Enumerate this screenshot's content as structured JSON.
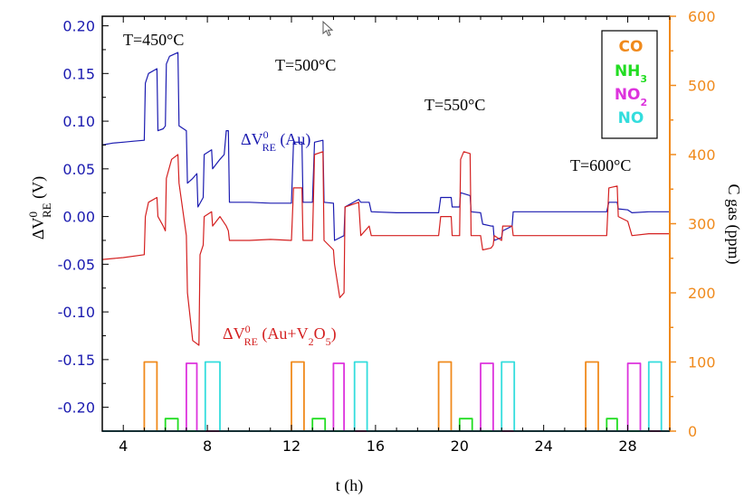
{
  "chart_data": {
    "type": "line",
    "xlabel": "t (h)",
    "ylabel": {
      "main": "ΔV",
      "sup": "0",
      "sub": "RE",
      "unit": " (V)"
    },
    "y2label": "C gas (ppm)",
    "xlim": [
      3,
      30
    ],
    "ylim": [
      -0.225,
      0.21
    ],
    "y2lim": [
      0,
      600
    ],
    "xticks": [
      4,
      8,
      12,
      16,
      20,
      24,
      28
    ],
    "yticks": [
      0.2,
      0.15,
      0.1,
      0.05,
      0.0,
      -0.05,
      -0.1,
      -0.15,
      -0.2
    ],
    "y2ticks": [
      0,
      100,
      200,
      300,
      400,
      500,
      600
    ],
    "annotations": {
      "t450": "T=450°C",
      "t500": "T=500°C",
      "t550": "T=550°C",
      "t600": "T=600°C",
      "au": {
        "main": "ΔV",
        "sup": "0",
        "sub": "RE",
        "rest": " (Au)"
      },
      "auv2o5": {
        "main": "ΔV",
        "sup": "0",
        "sub": "RE",
        "rest1": " (Au+V",
        "sub2": "2",
        "rest2": "O",
        "sub3": "5",
        "rest3": ")"
      }
    },
    "legend": {
      "position": "top-right",
      "entries": [
        {
          "text": "CO",
          "color": "#f08a1c"
        },
        {
          "text": "NH",
          "sub": "3",
          "color": "#22dd22"
        },
        {
          "text": "NO",
          "sub": "2",
          "color": "#dd33dd"
        },
        {
          "text": "NO",
          "color": "#33dddd"
        }
      ]
    },
    "series": [
      {
        "name": "ΔV0RE (Au)",
        "axis": "left",
        "color": "#1b1bb0",
        "points": [
          [
            3.0,
            0.075
          ],
          [
            3.5,
            0.077
          ],
          [
            4.0,
            0.078
          ],
          [
            4.5,
            0.079
          ],
          [
            5.0,
            0.08
          ],
          [
            5.05,
            0.14
          ],
          [
            5.2,
            0.15
          ],
          [
            5.6,
            0.155
          ],
          [
            5.65,
            0.09
          ],
          [
            5.9,
            0.092
          ],
          [
            6.0,
            0.095
          ],
          [
            6.05,
            0.16
          ],
          [
            6.2,
            0.168
          ],
          [
            6.6,
            0.172
          ],
          [
            6.65,
            0.095
          ],
          [
            7.0,
            0.09
          ],
          [
            7.05,
            0.035
          ],
          [
            7.3,
            0.04
          ],
          [
            7.5,
            0.045
          ],
          [
            7.55,
            0.01
          ],
          [
            7.8,
            0.02
          ],
          [
            7.85,
            0.065
          ],
          [
            8.2,
            0.07
          ],
          [
            8.25,
            0.05
          ],
          [
            8.6,
            0.06
          ],
          [
            8.8,
            0.065
          ],
          [
            8.9,
            0.09
          ],
          [
            9.0,
            0.09
          ],
          [
            9.05,
            0.015
          ],
          [
            10.0,
            0.015
          ],
          [
            11.0,
            0.014
          ],
          [
            12.0,
            0.014
          ],
          [
            12.1,
            0.078
          ],
          [
            12.5,
            0.078
          ],
          [
            12.55,
            0.015
          ],
          [
            13.0,
            0.015
          ],
          [
            13.1,
            0.078
          ],
          [
            13.5,
            0.08
          ],
          [
            13.55,
            0.015
          ],
          [
            14.0,
            0.014
          ],
          [
            14.05,
            -0.025
          ],
          [
            14.5,
            -0.02
          ],
          [
            14.55,
            0.01
          ],
          [
            15.2,
            0.018
          ],
          [
            15.3,
            0.015
          ],
          [
            15.7,
            0.015
          ],
          [
            15.8,
            0.005
          ],
          [
            17.0,
            0.004
          ],
          [
            18.0,
            0.004
          ],
          [
            19.0,
            0.004
          ],
          [
            19.1,
            0.02
          ],
          [
            19.6,
            0.02
          ],
          [
            19.65,
            0.01
          ],
          [
            20.0,
            0.01
          ],
          [
            20.05,
            0.025
          ],
          [
            20.5,
            0.022
          ],
          [
            20.55,
            0.005
          ],
          [
            21.0,
            0.004
          ],
          [
            21.1,
            -0.008
          ],
          [
            21.5,
            -0.01
          ],
          [
            21.6,
            -0.01
          ],
          [
            21.65,
            -0.025
          ],
          [
            22.0,
            -0.022
          ],
          [
            22.05,
            -0.015
          ],
          [
            22.5,
            -0.01
          ],
          [
            22.55,
            0.005
          ],
          [
            24.0,
            0.005
          ],
          [
            26.0,
            0.005
          ],
          [
            27.0,
            0.005
          ],
          [
            27.1,
            0.015
          ],
          [
            27.5,
            0.015
          ],
          [
            27.55,
            0.008
          ],
          [
            28.0,
            0.007
          ],
          [
            28.2,
            0.004
          ],
          [
            29.0,
            0.005
          ],
          [
            30.0,
            0.005
          ]
        ]
      },
      {
        "name": "ΔV0RE (Au+V2O5)",
        "axis": "left",
        "color": "#d42020",
        "points": [
          [
            3.0,
            -0.045
          ],
          [
            4.0,
            -0.043
          ],
          [
            5.0,
            -0.04
          ],
          [
            5.05,
            0.0
          ],
          [
            5.2,
            0.015
          ],
          [
            5.6,
            0.02
          ],
          [
            5.65,
            0.0
          ],
          [
            5.9,
            -0.01
          ],
          [
            6.0,
            -0.015
          ],
          [
            6.05,
            0.04
          ],
          [
            6.3,
            0.06
          ],
          [
            6.6,
            0.065
          ],
          [
            6.65,
            0.035
          ],
          [
            7.0,
            -0.02
          ],
          [
            7.05,
            -0.08
          ],
          [
            7.3,
            -0.13
          ],
          [
            7.6,
            -0.135
          ],
          [
            7.65,
            -0.04
          ],
          [
            7.8,
            -0.03
          ],
          [
            7.85,
            0.0
          ],
          [
            8.2,
            0.005
          ],
          [
            8.25,
            -0.01
          ],
          [
            8.6,
            0.0
          ],
          [
            8.9,
            -0.01
          ],
          [
            9.0,
            -0.015
          ],
          [
            9.05,
            -0.025
          ],
          [
            10.0,
            -0.025
          ],
          [
            11.0,
            -0.024
          ],
          [
            12.0,
            -0.025
          ],
          [
            12.1,
            0.03
          ],
          [
            12.5,
            0.03
          ],
          [
            12.55,
            -0.025
          ],
          [
            13.0,
            -0.025
          ],
          [
            13.1,
            0.065
          ],
          [
            13.5,
            0.068
          ],
          [
            13.55,
            -0.025
          ],
          [
            14.0,
            -0.035
          ],
          [
            14.05,
            -0.05
          ],
          [
            14.3,
            -0.085
          ],
          [
            14.5,
            -0.08
          ],
          [
            14.55,
            0.01
          ],
          [
            15.2,
            0.015
          ],
          [
            15.3,
            -0.02
          ],
          [
            15.7,
            -0.01
          ],
          [
            15.8,
            -0.02
          ],
          [
            17.0,
            -0.02
          ],
          [
            18.0,
            -0.02
          ],
          [
            19.0,
            -0.02
          ],
          [
            19.1,
            0.0
          ],
          [
            19.6,
            0.0
          ],
          [
            19.65,
            -0.02
          ],
          [
            20.0,
            -0.02
          ],
          [
            20.05,
            0.06
          ],
          [
            20.2,
            0.068
          ],
          [
            20.5,
            0.066
          ],
          [
            20.55,
            -0.02
          ],
          [
            21.0,
            -0.02
          ],
          [
            21.1,
            -0.035
          ],
          [
            21.5,
            -0.033
          ],
          [
            21.6,
            -0.03
          ],
          [
            21.65,
            -0.02
          ],
          [
            22.0,
            -0.025
          ],
          [
            22.05,
            -0.01
          ],
          [
            22.5,
            -0.01
          ],
          [
            22.55,
            -0.02
          ],
          [
            24.0,
            -0.02
          ],
          [
            26.0,
            -0.02
          ],
          [
            27.0,
            -0.02
          ],
          [
            27.1,
            0.03
          ],
          [
            27.5,
            0.032
          ],
          [
            27.55,
            0.0
          ],
          [
            28.0,
            -0.005
          ],
          [
            28.2,
            -0.02
          ],
          [
            29.0,
            -0.018
          ],
          [
            30.0,
            -0.018
          ]
        ]
      },
      {
        "name": "CO",
        "axis": "right",
        "color": "#f08a1c",
        "points": [
          [
            3.0,
            0
          ],
          [
            5.0,
            0
          ],
          [
            5.0,
            100
          ],
          [
            5.6,
            100
          ],
          [
            5.6,
            0
          ],
          [
            12.0,
            0
          ],
          [
            12.0,
            100
          ],
          [
            12.6,
            100
          ],
          [
            12.6,
            0
          ],
          [
            19.0,
            0
          ],
          [
            19.0,
            100
          ],
          [
            19.6,
            100
          ],
          [
            19.6,
            0
          ],
          [
            26.0,
            0
          ],
          [
            26.0,
            100
          ],
          [
            26.6,
            100
          ],
          [
            26.6,
            0
          ],
          [
            30.0,
            0
          ]
        ]
      },
      {
        "name": "NH3",
        "axis": "right",
        "color": "#22dd22",
        "points": [
          [
            3.0,
            0
          ],
          [
            6.0,
            0
          ],
          [
            6.0,
            18
          ],
          [
            6.6,
            18
          ],
          [
            6.6,
            0
          ],
          [
            13.0,
            0
          ],
          [
            13.0,
            18
          ],
          [
            13.6,
            18
          ],
          [
            13.6,
            0
          ],
          [
            20.0,
            0
          ],
          [
            20.0,
            18
          ],
          [
            20.6,
            18
          ],
          [
            20.6,
            0
          ],
          [
            27.0,
            0
          ],
          [
            27.0,
            18
          ],
          [
            27.5,
            18
          ],
          [
            27.5,
            0
          ],
          [
            30.0,
            0
          ]
        ]
      },
      {
        "name": "NO2",
        "axis": "right",
        "color": "#dd33dd",
        "points": [
          [
            3.0,
            0
          ],
          [
            7.0,
            0
          ],
          [
            7.0,
            98
          ],
          [
            7.5,
            98
          ],
          [
            7.5,
            0
          ],
          [
            14.0,
            0
          ],
          [
            14.0,
            98
          ],
          [
            14.5,
            98
          ],
          [
            14.5,
            0
          ],
          [
            21.0,
            0
          ],
          [
            21.0,
            98
          ],
          [
            21.6,
            98
          ],
          [
            21.6,
            0
          ],
          [
            28.0,
            0
          ],
          [
            28.0,
            98
          ],
          [
            28.6,
            98
          ],
          [
            28.6,
            0
          ],
          [
            30.0,
            0
          ]
        ]
      },
      {
        "name": "NO",
        "axis": "right",
        "color": "#33dddd",
        "points": [
          [
            3.0,
            0
          ],
          [
            7.9,
            0
          ],
          [
            7.9,
            100
          ],
          [
            8.6,
            100
          ],
          [
            8.6,
            0
          ],
          [
            15.0,
            0
          ],
          [
            15.0,
            100
          ],
          [
            15.6,
            100
          ],
          [
            15.6,
            0
          ],
          [
            22.0,
            0
          ],
          [
            22.0,
            100
          ],
          [
            22.6,
            100
          ],
          [
            22.6,
            0
          ],
          [
            29.0,
            0
          ],
          [
            29.0,
            100
          ],
          [
            29.6,
            100
          ],
          [
            29.6,
            0
          ],
          [
            30.0,
            0
          ]
        ]
      }
    ]
  }
}
